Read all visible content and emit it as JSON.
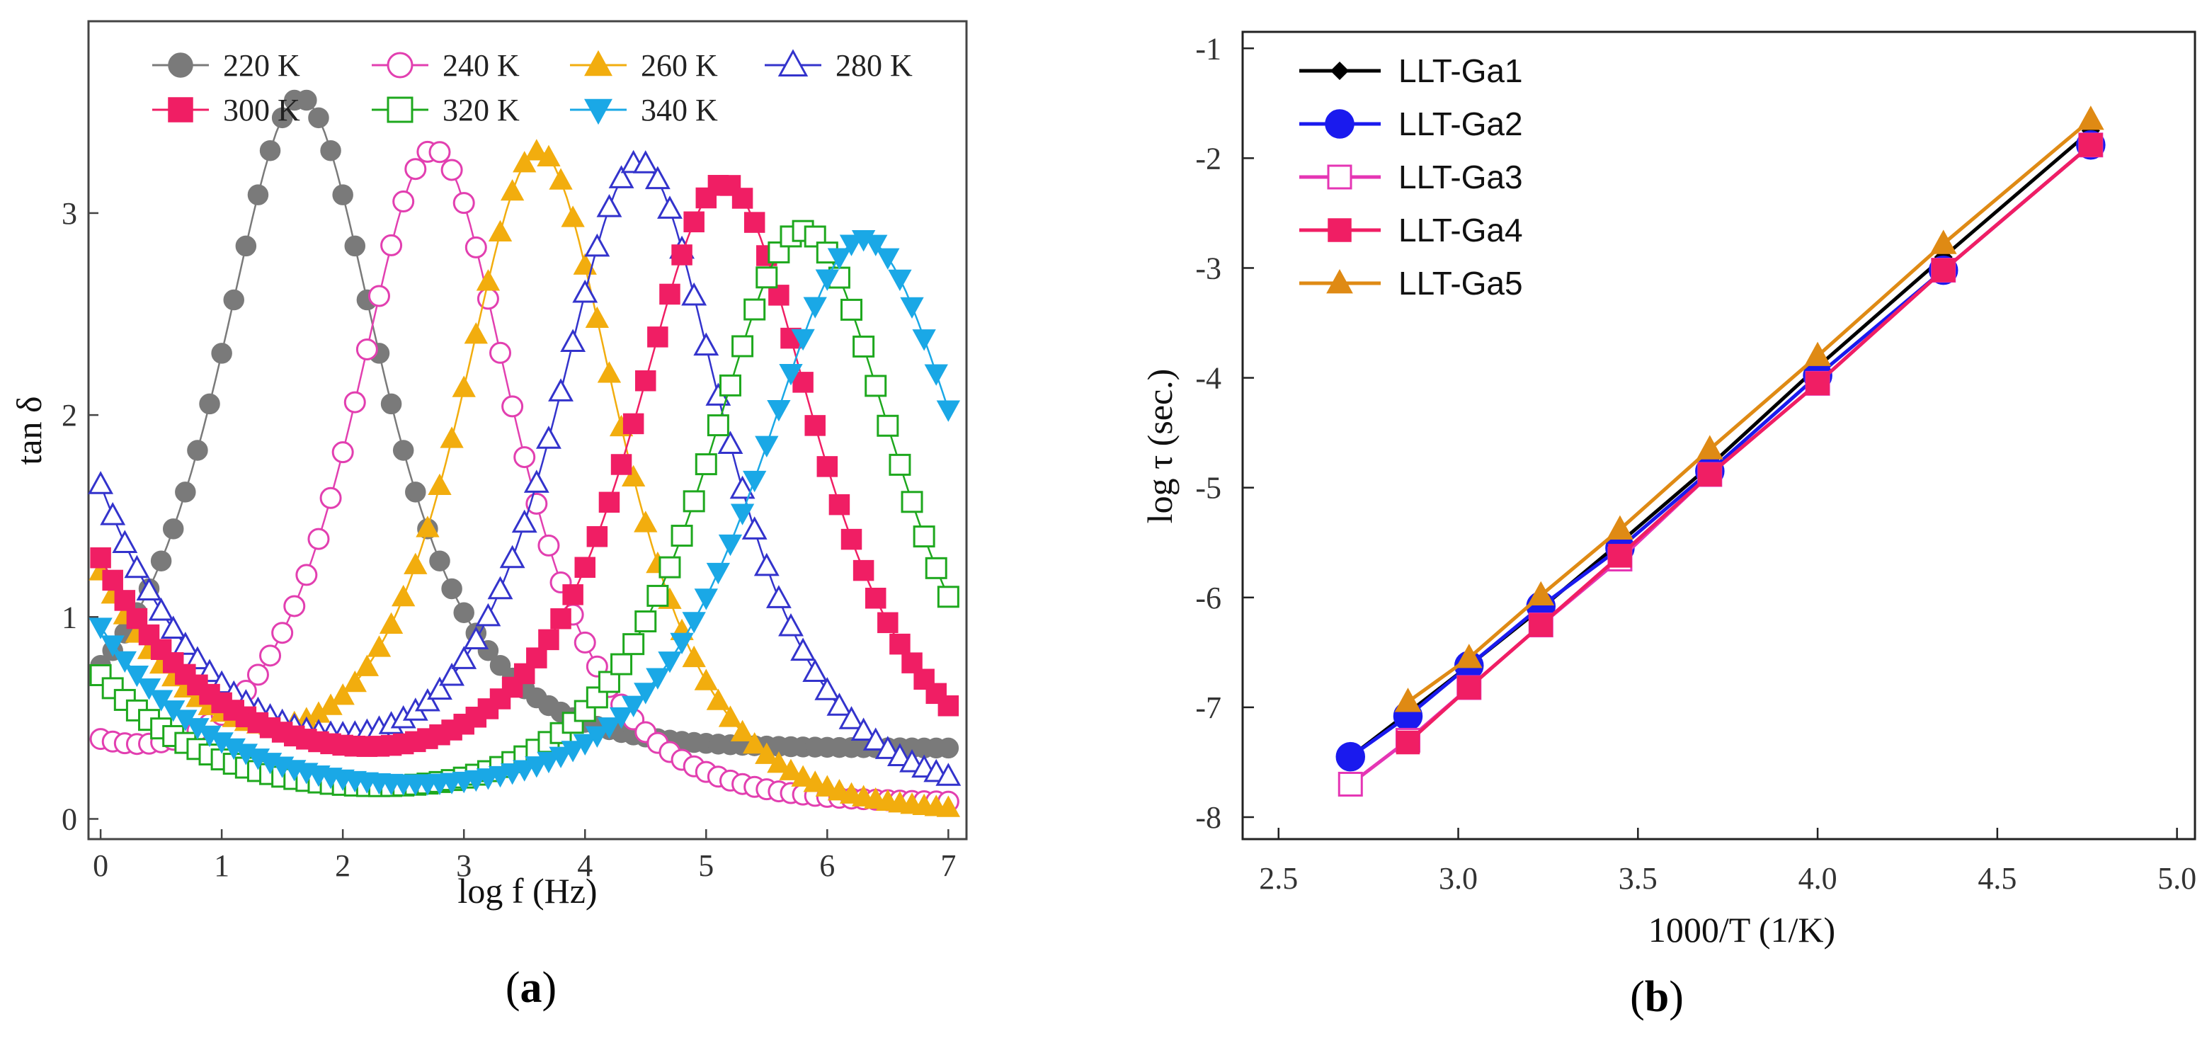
{
  "chart_data": [
    {
      "type": "line",
      "panel_label": {
        "open": "(",
        "letter": "a",
        "close": ")"
      },
      "xlabel": "log f (Hz)",
      "ylabel": "tan δ",
      "xlim": [
        -0.1,
        7.15
      ],
      "ylim": [
        -0.1,
        3.95
      ],
      "xticks": [
        0,
        1,
        2,
        3,
        4,
        5,
        6,
        7
      ],
      "yticks": [
        0,
        1,
        2,
        3
      ],
      "legend_position": "top",
      "series": [
        {
          "name": "220 K",
          "color": "#7a7a7a",
          "marker": "circle",
          "fill": true,
          "base": 0.35,
          "peak": 3.22,
          "fpeak": 1.65,
          "w": 0.6,
          "left": 0.0
        },
        {
          "name": "240 K",
          "color": "#e23fb0",
          "marker": "circle",
          "fill": false,
          "base": 0.08,
          "peak": 3.22,
          "fpeak": 2.75,
          "w": 0.6,
          "left": 0.25
        },
        {
          "name": "260 K",
          "color": "#f2ad0e",
          "marker": "triangle-up",
          "fill": true,
          "base": 0.03,
          "peak": 3.25,
          "fpeak": 3.62,
          "w": 0.6,
          "left": 1.18
        },
        {
          "name": "280 K",
          "color": "#3333cc",
          "marker": "triangle-up",
          "fill": false,
          "base": 0.1,
          "peak": 3.14,
          "fpeak": 4.45,
          "w": 0.63,
          "left": 1.55
        },
        {
          "name": "300 K",
          "color": "#f01e64",
          "marker": "square",
          "fill": true,
          "base": 0.17,
          "peak": 2.97,
          "fpeak": 5.15,
          "w": 0.68,
          "left": 1.12
        },
        {
          "name": "320 K",
          "color": "#1ea81e",
          "marker": "square",
          "fill": false,
          "base": 0.06,
          "peak": 2.85,
          "fpeak": 5.8,
          "w": 0.72,
          "left": 0.65
        },
        {
          "name": "340 K",
          "color": "#1aa8e6",
          "marker": "triangle-down",
          "fill": true,
          "base": 0.07,
          "peak": 2.8,
          "fpeak": 6.3,
          "w": 0.78,
          "left": 0.88
        }
      ]
    },
    {
      "type": "line",
      "panel_label": {
        "open": "(",
        "letter": "b",
        "close": ")"
      },
      "xlabel": "1000/T (1/K)",
      "ylabel": "log τ (sec.)",
      "xlim": [
        2.4,
        5.05
      ],
      "ylim": [
        -8.2,
        -0.85
      ],
      "xticks": [
        2.5,
        3.0,
        3.5,
        4.0,
        4.5,
        5.0
      ],
      "xtick_labels": [
        "2.5",
        "3.0",
        "3.5",
        "4.0",
        "4.5",
        "5.0"
      ],
      "yticks": [
        -8,
        -7,
        -6,
        -5,
        -4,
        -3,
        -2,
        -1
      ],
      "yticks_labels": [
        "-8",
        "-7",
        "-6",
        "-5",
        "-4",
        "-3",
        "-2",
        "-1"
      ],
      "legend_position": "top-left",
      "series": [
        {
          "name": "LLT-Ga1",
          "color": "#000000",
          "marker": "diamond",
          "fill": true,
          "x": [
            2.7,
            2.86,
            3.03,
            3.23,
            3.45,
            3.7,
            4.0,
            4.35,
            4.76
          ],
          "y": [
            -7.45,
            -7.05,
            -6.62,
            -6.1,
            -5.5,
            -4.8,
            -3.9,
            -2.9,
            -1.75
          ]
        },
        {
          "name": "LLT-Ga2",
          "color": "#1a1aee",
          "marker": "circle",
          "fill": true,
          "x": [
            2.7,
            2.86,
            3.03,
            3.23,
            3.45,
            3.7,
            4.0,
            4.35,
            4.76
          ],
          "y": [
            -7.45,
            -7.08,
            -6.62,
            -6.08,
            -5.55,
            -4.85,
            -3.98,
            -3.02,
            -1.88
          ]
        },
        {
          "name": "LLT-Ga3",
          "color": "#e535b4",
          "marker": "square",
          "fill": false,
          "x": [
            2.7,
            2.86,
            3.03,
            3.23,
            3.45,
            3.7,
            4.0,
            4.35,
            4.76
          ],
          "y": [
            -7.7,
            -7.3,
            -6.82,
            -6.25,
            -5.65,
            -4.88,
            -4.05,
            -3.02,
            -1.88
          ]
        },
        {
          "name": "LLT-Ga4",
          "color": "#f01e64",
          "marker": "square",
          "fill": true,
          "x": [
            2.86,
            3.03,
            3.23,
            3.45,
            3.7,
            4.0,
            4.35,
            4.76
          ],
          "y": [
            -7.32,
            -6.82,
            -6.25,
            -5.62,
            -4.88,
            -4.05,
            -3.02,
            -1.88
          ]
        },
        {
          "name": "LLT-Ga5",
          "color": "#df8a14",
          "marker": "triangle-up",
          "fill": true,
          "x": [
            2.86,
            3.03,
            3.23,
            3.45,
            3.7,
            4.0,
            4.35,
            4.76
          ],
          "y": [
            -6.95,
            -6.55,
            -5.98,
            -5.38,
            -4.65,
            -3.8,
            -2.78,
            -1.65
          ]
        }
      ]
    }
  ]
}
